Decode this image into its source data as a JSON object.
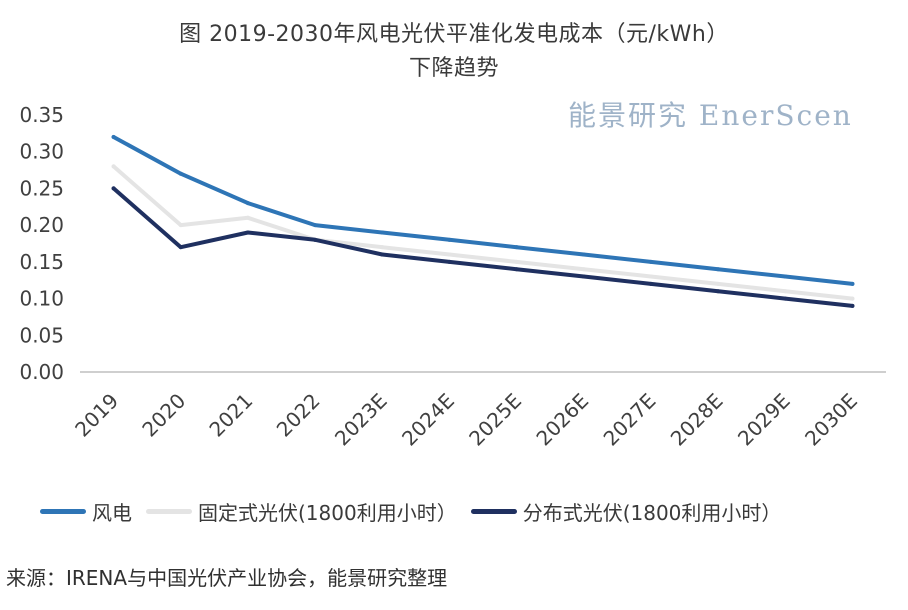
{
  "colors": {
    "wind": "#2e75b6",
    "fixed_pv": "#e4e4e4",
    "dist_pv": "#1f3060",
    "axis": "#bfbfbf",
    "text": "#404040",
    "watermark": "#9fb3c8"
  },
  "watermark": "能景研究 EnerScen",
  "source": "来源：IRENA与中国光伏产业协会，能景研究整理",
  "chart_data": {
    "type": "line",
    "title": "图 2019-2030年风电光伏平准化发电成本（元/kWh）",
    "subtitle": "下降趋势",
    "categories": [
      "2019",
      "2020",
      "2021",
      "2022",
      "2023E",
      "2024E",
      "2025E",
      "2026E",
      "2027E",
      "2028E",
      "2029E",
      "2030E"
    ],
    "series": [
      {
        "name": "风电",
        "values": [
          0.32,
          0.27,
          0.23,
          0.2,
          0.19,
          0.18,
          0.17,
          0.16,
          0.15,
          0.14,
          0.13,
          0.12
        ]
      },
      {
        "name": "固定式光伏(1800利用小时）",
        "values": [
          0.28,
          0.2,
          0.21,
          0.18,
          0.17,
          0.16,
          0.15,
          0.14,
          0.13,
          0.12,
          0.11,
          0.1
        ]
      },
      {
        "name": "分布式光伏(1800利用小时）",
        "values": [
          0.25,
          0.17,
          0.19,
          0.18,
          0.16,
          0.15,
          0.14,
          0.13,
          0.12,
          0.11,
          0.1,
          0.09
        ]
      }
    ],
    "yticks": [
      "0.00",
      "0.05",
      "0.10",
      "0.15",
      "0.20",
      "0.25",
      "0.30",
      "0.35"
    ],
    "ylim": [
      0,
      0.35
    ],
    "xlabel": "",
    "ylabel": "",
    "grid": false,
    "legend": "bottom"
  }
}
